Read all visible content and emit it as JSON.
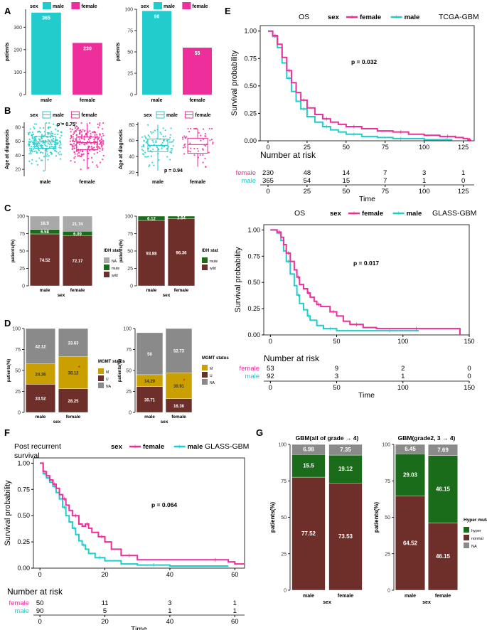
{
  "colors": {
    "male": "#22CCCC",
    "female": "#EE2E9B",
    "na": "#8A8A8A",
    "mut": "#1A6B1A",
    "wild": "#6E2F2A",
    "red": "#FF0000"
  },
  "panel_letters": [
    "A",
    "B",
    "C",
    "D",
    "E",
    "F",
    "G"
  ],
  "chart_data": [
    {
      "id": "A1",
      "type": "bar",
      "ylabel": "patients",
      "xlabel": "",
      "categories": [
        "male",
        "female"
      ],
      "values": [
        365,
        230
      ],
      "labels": [
        "365",
        "230"
      ],
      "yticks": [
        0,
        100,
        200,
        300
      ],
      "ylim": [
        0,
        380
      ],
      "legend": {
        "title": "sex",
        "items": [
          "male",
          "female"
        ]
      }
    },
    {
      "id": "A2",
      "type": "bar",
      "ylabel": "patients",
      "xlabel": "",
      "categories": [
        "male",
        "female"
      ],
      "values": [
        98,
        55
      ],
      "labels": [
        "98",
        "55"
      ],
      "yticks": [
        0,
        25,
        50,
        75,
        100
      ],
      "ylim": [
        0,
        100
      ],
      "legend": {
        "title": "sex",
        "items": [
          "male",
          "female"
        ]
      }
    },
    {
      "id": "B1",
      "type": "box",
      "ylabel": "Age at diagnosis",
      "categories": [
        "male",
        "female"
      ],
      "yticks": [
        20,
        40,
        60,
        80
      ],
      "ylim": [
        10,
        87
      ],
      "pvalue": "p = 0.75",
      "legend": {
        "title": "sex",
        "items": [
          "male",
          "female"
        ]
      },
      "series": [
        {
          "name": "male",
          "n": 365,
          "min": 18,
          "q1": 50,
          "median": 59,
          "q3": 67,
          "max": 86
        },
        {
          "name": "female",
          "n": 230,
          "min": 20,
          "q1": 48,
          "median": 58,
          "q3": 66,
          "max": 86
        }
      ]
    },
    {
      "id": "B2",
      "type": "box",
      "ylabel": "Age at diagnosis",
      "categories": [
        "male",
        "female"
      ],
      "yticks": [
        20,
        40,
        60,
        80
      ],
      "ylim": [
        15,
        83
      ],
      "pvalue": "p = 0.94",
      "legend": {
        "title": "sex",
        "items": [
          "male",
          "female"
        ]
      },
      "series": [
        {
          "name": "male",
          "n": 92,
          "min": 22,
          "q1": 46,
          "median": 54,
          "q3": 62,
          "max": 80
        },
        {
          "name": "female",
          "n": 53,
          "min": 27,
          "q1": 44,
          "median": 55,
          "q3": 63,
          "max": 75
        }
      ]
    },
    {
      "id": "C1",
      "type": "stacked-bar",
      "ylabel": "patients(%)",
      "xlabel": "sex",
      "categories": [
        "male",
        "female"
      ],
      "yticks": [
        0,
        25,
        50,
        75,
        100
      ],
      "legend": {
        "title": "IDH stat",
        "items": [
          "NA",
          "mute",
          "wild"
        ]
      },
      "series": [
        {
          "name": "wild",
          "values": [
            74.52,
            72.17
          ],
          "labels": [
            "74.52",
            "72.17"
          ]
        },
        {
          "name": "mute",
          "values": [
            6.58,
            6.09
          ],
          "labels": [
            "6.58",
            "6.09"
          ]
        },
        {
          "name": "NA",
          "values": [
            18.9,
            21.74
          ],
          "labels": [
            "18.9",
            "21.74"
          ]
        }
      ]
    },
    {
      "id": "C2",
      "type": "stacked-bar",
      "ylabel": "patients(%)",
      "xlabel": "sex",
      "categories": [
        "male",
        "female"
      ],
      "yticks": [
        0,
        25,
        50,
        75,
        100
      ],
      "legend": {
        "title": "IDH stat",
        "items": [
          "mute",
          "wild"
        ]
      },
      "series": [
        {
          "name": "wild",
          "values": [
            93.88,
            96.36
          ],
          "labels": [
            "93.88",
            "96.36"
          ]
        },
        {
          "name": "mute",
          "values": [
            6.12,
            3.64
          ],
          "labels": [
            "6.12",
            "3.64"
          ]
        }
      ]
    },
    {
      "id": "D1",
      "type": "stacked-bar",
      "ylabel": "patients(%)",
      "xlabel": "sex",
      "categories": [
        "male",
        "female"
      ],
      "yticks": [
        0,
        25,
        50,
        75,
        100
      ],
      "star": "*",
      "legend": {
        "title": "MGMT status",
        "items": [
          "M",
          "U",
          "NA"
        ]
      },
      "series": [
        {
          "name": "U",
          "values": [
            33.52,
            28.25
          ],
          "labels": [
            "33.52",
            "28.25"
          ]
        },
        {
          "name": "M",
          "values": [
            24.36,
            38.12
          ],
          "labels": [
            "24.36",
            "38.12"
          ]
        },
        {
          "name": "NA",
          "values": [
            42.12,
            33.63
          ],
          "labels": [
            "42.12",
            "33.63"
          ]
        }
      ]
    },
    {
      "id": "D2",
      "type": "stacked-bar",
      "ylabel": "patients(%)",
      "xlabel": "sex",
      "categories": [
        "male",
        "female"
      ],
      "yticks": [
        0,
        25,
        50,
        75,
        100
      ],
      "star": "*",
      "legend": {
        "title": "MGMT status",
        "items": [
          "M",
          "U",
          "NA"
        ]
      },
      "series": [
        {
          "name": "U",
          "values": [
            30.71,
            16.36
          ],
          "labels": [
            "30.71",
            "16.36"
          ]
        },
        {
          "name": "M",
          "values": [
            14.29,
            30.91
          ],
          "labels": [
            "14.29",
            "30.91"
          ]
        },
        {
          "name": "NA",
          "values": [
            50,
            52.73
          ],
          "labels": [
            "50",
            "52.73"
          ]
        }
      ]
    },
    {
      "id": "E1",
      "type": "line",
      "subtype": "kaplan-meier",
      "title": "OS",
      "subtitle": "TCGA-GBM",
      "pvalue": "p = 0.032",
      "ylabel": "Survival probability",
      "xlabel": "Time",
      "xlim": [
        -5,
        132
      ],
      "xticks": [
        0,
        25,
        50,
        75,
        100,
        125
      ],
      "ylim": [
        0,
        1.05
      ],
      "yticks": [
        0,
        0.25,
        0.5,
        0.75,
        1
      ],
      "legend": {
        "title": "sex",
        "items": [
          "female",
          "male"
        ]
      },
      "series": [
        {
          "name": "female",
          "x": [
            0,
            3,
            6,
            9,
            12,
            15,
            18,
            21,
            25,
            30,
            35,
            40,
            45,
            50,
            60,
            70,
            80,
            90,
            100,
            110,
            120,
            125,
            128,
            130
          ],
          "y": [
            1,
            0.96,
            0.88,
            0.76,
            0.64,
            0.53,
            0.44,
            0.37,
            0.3,
            0.24,
            0.2,
            0.17,
            0.15,
            0.13,
            0.11,
            0.09,
            0.08,
            0.06,
            0.05,
            0.04,
            0.03,
            0.02,
            0.01,
            0.01
          ]
        },
        {
          "name": "male",
          "x": [
            0,
            3,
            6,
            9,
            12,
            15,
            18,
            21,
            25,
            30,
            35,
            40,
            45,
            50,
            60,
            70,
            80,
            90,
            100,
            110,
            118
          ],
          "y": [
            1,
            0.95,
            0.85,
            0.71,
            0.57,
            0.45,
            0.36,
            0.29,
            0.22,
            0.17,
            0.13,
            0.1,
            0.08,
            0.06,
            0.04,
            0.03,
            0.02,
            0.02,
            0.01,
            0.01,
            0.01
          ]
        }
      ],
      "risk_table": {
        "title": "Number at risk",
        "times": [
          0,
          25,
          50,
          75,
          100,
          125
        ],
        "rows": [
          {
            "name": "female",
            "values": [
              230,
              48,
              14,
              7,
              3,
              1
            ]
          },
          {
            "name": "male",
            "values": [
              365,
              54,
              15,
              7,
              1,
              0
            ]
          }
        ]
      }
    },
    {
      "id": "E2",
      "type": "line",
      "subtype": "kaplan-meier",
      "title": "OS",
      "subtitle": "GLASS-GBM",
      "pvalue": "p = 0.017",
      "ylabel": "Survival probability",
      "xlabel": "Time",
      "xlim": [
        -5,
        150
      ],
      "xticks": [
        0,
        50,
        100,
        150
      ],
      "ylim": [
        0,
        1.05
      ],
      "yticks": [
        0,
        0.25,
        0.5,
        0.75,
        1
      ],
      "legend": {
        "title": "sex",
        "items": [
          "female",
          "male"
        ]
      },
      "series": [
        {
          "name": "female",
          "x": [
            0,
            5,
            8,
            10,
            12,
            15,
            18,
            20,
            22,
            25,
            28,
            30,
            33,
            35,
            38,
            40,
            45,
            50,
            55,
            60,
            70,
            80,
            100,
            120,
            140,
            143
          ],
          "y": [
            1,
            0.98,
            0.93,
            0.86,
            0.78,
            0.7,
            0.62,
            0.55,
            0.48,
            0.44,
            0.4,
            0.36,
            0.32,
            0.29,
            0.27,
            0.27,
            0.22,
            0.18,
            0.13,
            0.1,
            0.07,
            0.06,
            0.06,
            0.06,
            0.06,
            0.0
          ]
        },
        {
          "name": "male",
          "x": [
            0,
            5,
            8,
            10,
            12,
            15,
            18,
            20,
            22,
            25,
            28,
            30,
            35,
            40,
            50,
            60,
            80,
            100,
            112
          ],
          "y": [
            1,
            0.97,
            0.9,
            0.8,
            0.7,
            0.58,
            0.47,
            0.38,
            0.3,
            0.24,
            0.18,
            0.14,
            0.09,
            0.06,
            0.04,
            0.04,
            0.04,
            0.04,
            0.04
          ]
        }
      ],
      "risk_table": {
        "title": "Number at risk",
        "times": [
          0,
          50,
          100,
          150
        ],
        "rows": [
          {
            "name": "female",
            "values": [
              53,
              9,
              2,
              0
            ]
          },
          {
            "name": "male",
            "values": [
              92,
              3,
              1,
              0
            ]
          }
        ]
      }
    },
    {
      "id": "F",
      "type": "line",
      "subtype": "kaplan-meier",
      "title": "Post recurrent\nsurvival",
      "subtitle": "GLASS-GBM",
      "pvalue": "p = 0.064",
      "ylabel": "Survival probability",
      "xlabel": "Time",
      "xlim": [
        -2,
        63
      ],
      "xticks": [
        0,
        20,
        40,
        60
      ],
      "ylim": [
        0,
        1.05
      ],
      "yticks": [
        0,
        0.25,
        0.5,
        0.75,
        1
      ],
      "legend": {
        "title": "sex",
        "items": [
          "female",
          "male"
        ]
      },
      "series": [
        {
          "name": "female",
          "x": [
            0,
            1,
            2,
            3,
            4,
            5,
            6,
            7,
            8,
            9,
            10,
            12,
            13,
            14,
            15,
            16,
            18,
            20,
            22,
            25,
            30,
            40,
            50,
            58,
            60,
            63
          ],
          "y": [
            1,
            0.92,
            0.88,
            0.84,
            0.8,
            0.76,
            0.7,
            0.66,
            0.6,
            0.55,
            0.5,
            0.42,
            0.4,
            0.42,
            0.38,
            0.34,
            0.3,
            0.25,
            0.18,
            0.12,
            0.08,
            0.08,
            0.08,
            0.06,
            0.04,
            0.04
          ]
        },
        {
          "name": "male",
          "x": [
            0,
            1,
            2,
            3,
            4,
            5,
            6,
            7,
            8,
            9,
            10,
            11,
            12,
            13,
            14,
            15,
            17,
            20,
            25,
            30,
            40,
            50,
            58
          ],
          "y": [
            1,
            0.9,
            0.86,
            0.82,
            0.78,
            0.72,
            0.66,
            0.58,
            0.5,
            0.44,
            0.38,
            0.32,
            0.26,
            0.22,
            0.18,
            0.14,
            0.1,
            0.07,
            0.04,
            0.03,
            0.02,
            0.02,
            0.02
          ]
        }
      ],
      "risk_table": {
        "title": "Number at risk",
        "times": [
          0,
          20,
          40,
          60
        ],
        "rows": [
          {
            "name": "female",
            "values": [
              50,
              11,
              3,
              1
            ]
          },
          {
            "name": "male",
            "values": [
              90,
              5,
              1,
              1
            ]
          }
        ]
      }
    },
    {
      "id": "G1",
      "type": "stacked-bar",
      "title": "GBM(all of grade → 4)",
      "ylabel": "patients(%)",
      "xlabel": "sex",
      "categories": [
        "male",
        "female"
      ],
      "yticks": [
        0,
        25,
        50,
        75,
        100
      ],
      "series": [
        {
          "name": "normal",
          "values": [
            77.52,
            73.53
          ],
          "labels": [
            "77.52",
            "73.53"
          ]
        },
        {
          "name": "hyper",
          "values": [
            15.5,
            19.12
          ],
          "labels": [
            "15.5",
            "19.12"
          ]
        },
        {
          "name": "NA",
          "values": [
            6.98,
            7.35
          ],
          "labels": [
            "6.98",
            "7.35"
          ]
        }
      ]
    },
    {
      "id": "G2",
      "type": "stacked-bar",
      "title": "GBM(grade2, 3 → 4)",
      "ylabel": "patients(%)",
      "xlabel": "sex",
      "categories": [
        "male",
        "female"
      ],
      "yticks": [
        0,
        25,
        50,
        75,
        100
      ],
      "legend": {
        "title": "Hyper mutation",
        "items": [
          "hyper",
          "normal",
          "NA"
        ]
      },
      "series": [
        {
          "name": "normal",
          "values": [
            64.52,
            46.15
          ],
          "labels": [
            "64.52",
            "46.15"
          ]
        },
        {
          "name": "hyper",
          "values": [
            29.03,
            46.15
          ],
          "labels": [
            "29.03",
            "46.15"
          ]
        },
        {
          "name": "NA",
          "values": [
            6.45,
            7.69
          ],
          "labels": [
            "6.45",
            "7.69"
          ]
        }
      ]
    }
  ]
}
